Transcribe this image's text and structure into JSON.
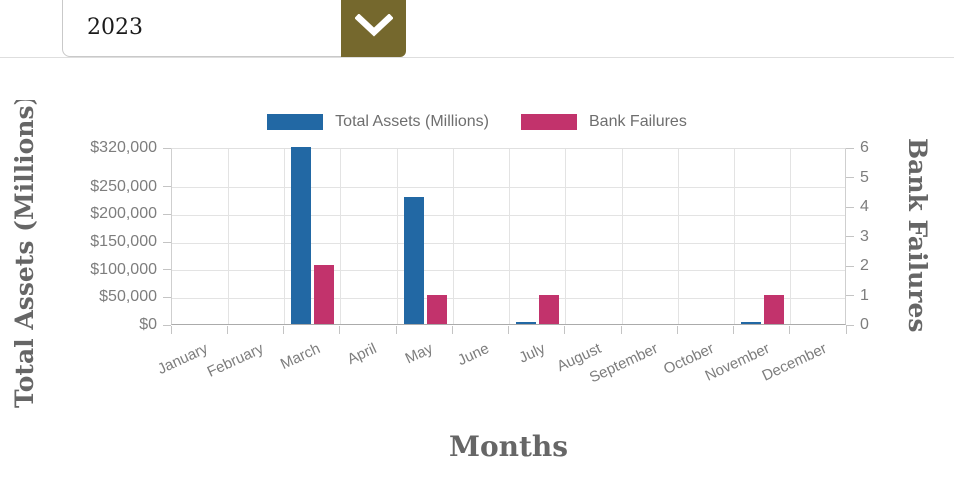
{
  "year_selector": {
    "value": "2023"
  },
  "chart_data": {
    "type": "bar",
    "categories": [
      "January",
      "February",
      "March",
      "April",
      "May",
      "June",
      "July",
      "August",
      "September",
      "October",
      "November",
      "December"
    ],
    "series": [
      {
        "name": "Total Assets (Millions)",
        "axis": "left",
        "color": "#2268a4",
        "values": [
          0,
          0,
          320000,
          0,
          229000,
          0,
          2000,
          0,
          0,
          0,
          2000,
          0
        ]
      },
      {
        "name": "Bank Failures",
        "axis": "right",
        "color": "#c2336c",
        "values": [
          0,
          0,
          2,
          0,
          1,
          0,
          1,
          0,
          0,
          0,
          1,
          0
        ]
      }
    ],
    "xlabel": "Months",
    "left_axis": {
      "title": "Total Assets (Millions)",
      "tick_labels": [
        "$0",
        "$50,000",
        "$100,000",
        "$150,000",
        "$200,000",
        "$250,000",
        "$320,000"
      ],
      "tick_values": [
        0,
        50000,
        100000,
        150000,
        200000,
        250000,
        320000
      ],
      "range": [
        0,
        320000
      ]
    },
    "right_axis": {
      "title": "Bank Failures",
      "tick_labels": [
        "0",
        "1",
        "2",
        "3",
        "4",
        "5",
        "6"
      ],
      "tick_values": [
        0,
        1,
        2,
        3,
        4,
        5,
        6
      ],
      "range": [
        0,
        6
      ]
    },
    "grid": true,
    "legend_position": "top",
    "x_tick_rotation_deg": -25
  },
  "colors": {
    "series_blue": "#2268a4",
    "series_pink": "#c2336c",
    "dropdown_button": "#75682d",
    "axis_text": "#7d7d7d",
    "title_text": "#666666",
    "grid_line": "#e3e3e3"
  }
}
